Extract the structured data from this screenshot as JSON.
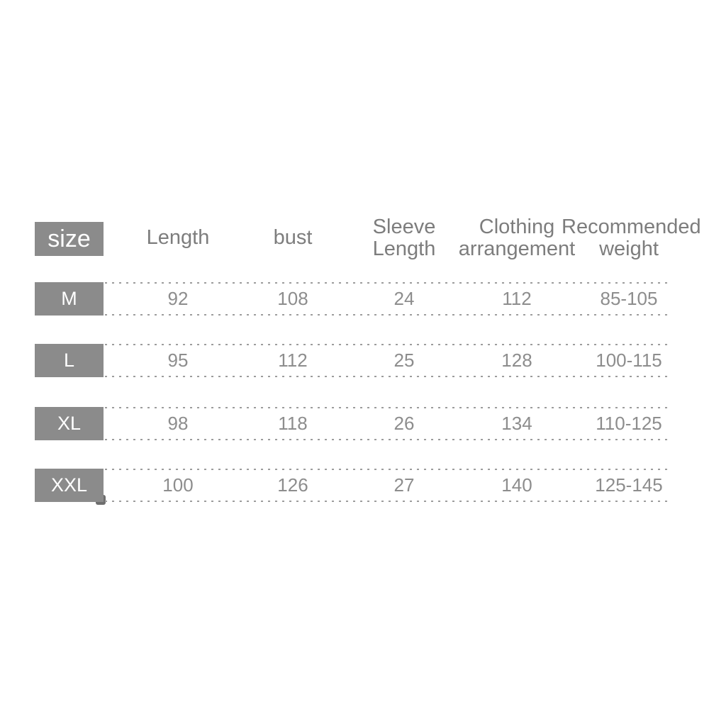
{
  "table": {
    "header": {
      "size_label": "size",
      "columns": [
        "Length",
        "bust",
        "Sleeve Length",
        "Clothing arrangement",
        "Recommended weight"
      ]
    },
    "rows": [
      {
        "size": "M",
        "values": [
          "92",
          "108",
          "24",
          "112",
          "85-105"
        ]
      },
      {
        "size": "L",
        "values": [
          "95",
          "112",
          "25",
          "128",
          "100-115"
        ]
      },
      {
        "size": "XL",
        "values": [
          "98",
          "118",
          "26",
          "134",
          "110-125"
        ]
      },
      {
        "size": "XXL",
        "values": [
          "100",
          "126",
          "27",
          "140",
          "125-145"
        ]
      }
    ]
  },
  "colors": {
    "background": "#ffffff",
    "label_box": "#8b8b8b",
    "label_box_text": "#ffffff",
    "header_text": "#7d7d7d",
    "value_text": "#8d8d8d",
    "dotted_line": "#9c9c9c"
  },
  "chart_data": {
    "type": "table",
    "columns": [
      "size",
      "Length",
      "bust",
      "Sleeve Length",
      "Clothing arrangement",
      "Recommended weight"
    ],
    "rows": [
      [
        "M",
        92,
        108,
        24,
        112,
        "85-105"
      ],
      [
        "L",
        95,
        112,
        25,
        128,
        "100-115"
      ],
      [
        "XL",
        98,
        118,
        26,
        134,
        "110-125"
      ],
      [
        "XXL",
        100,
        126,
        27,
        140,
        "125-145"
      ]
    ],
    "title": "",
    "layout": "size chart with gray row-label boxes and dotted row separators"
  }
}
